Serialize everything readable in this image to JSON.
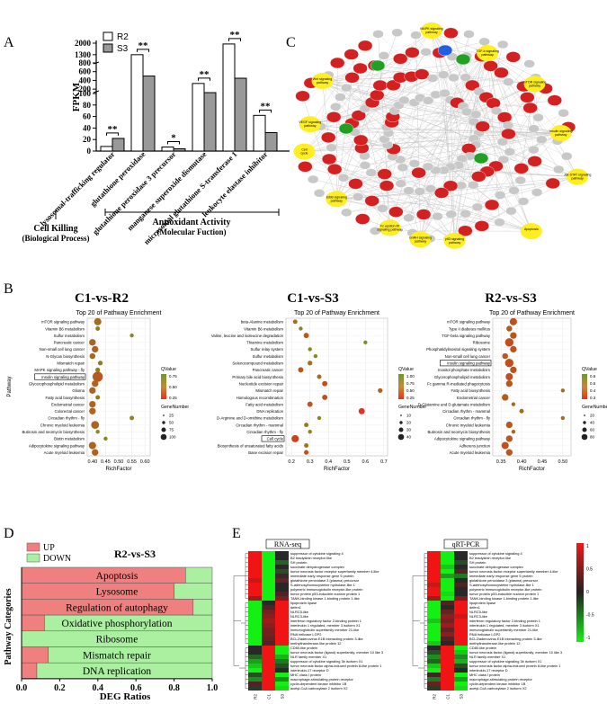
{
  "panel_labels": {
    "a": "A",
    "b": "B",
    "c": "C",
    "d": "D",
    "e": "E"
  },
  "panel_a": {
    "legend": [
      "R2",
      "S3"
    ],
    "ylabel": "FPKM",
    "group_labels": {
      "cell_killing": "Cell Killing",
      "cell_killing_sub": "(Biological Process)",
      "antioxidant": "Antioxidant Activity",
      "antioxidant_sub": "(Molecular Fuction)"
    }
  },
  "panel_c": {
    "pathway_nodes": [
      "MAPK signaling pathway",
      "TGF-b signaling pathway",
      "mTOR signaling pathway",
      "Wnt signaling pathway",
      "Insulin signaling pathway",
      "VEGF signaling pathway",
      "Jak-STAT signaling pathway",
      "Cell cycle",
      "Apoptosis",
      "ErbB signaling pathway",
      "p53 signaling pathway",
      "Fc epsilon RI signaling pathway",
      "GnRH signaling pathway"
    ]
  },
  "panel_b": {
    "titles": [
      "C1-vs-R2",
      "C1-vs-S3",
      "R2-vs-S3"
    ],
    "subtitle": "Top 20 of Pathway Enrichment",
    "xlabel": "RichFactor",
    "ylabel": "Pathway",
    "qvalue_label": "QValue",
    "gene_label": "GeneNumber"
  },
  "panel_d": {
    "title": "R2-vs-S3",
    "legend": [
      "UP",
      "DOWN"
    ],
    "xlabel": "DEG Ratios",
    "ylabel": "Pathway Categories"
  },
  "panel_e": {
    "col_labels": [
      "RNA-seq",
      "qRT-PCR"
    ],
    "sample_labels": [
      "R2",
      "C1",
      "S3"
    ],
    "scale_ticks": [
      "1",
      "0.5",
      "0",
      "-0.5",
      "-1"
    ],
    "genes": [
      "suppressor of cytokine signaling 4",
      "B2 bradykinin receptor-like",
      "SH protein",
      "succinate dehydrogenase complex",
      "tumor necrosis factor receptor superfamily member 4-like",
      "immediate early response gene 5 protein",
      "glutathione peroxidase 3 (plasma) precursor",
      "S-adenosylhomocysteine hydrolase-like 1",
      "polymeric immunoglobulin receptor-like protein",
      "tumor protein p53-inducible nuclear protein 1",
      "TANK-binding kinase 1-binding protein 1-like",
      "lipoprotein lipase",
      "defen1",
      "NLRC5-like",
      "NLRC3-like",
      "interferon regulatory factor 2-binding protein 1",
      "interleukin 1 regulated, member 3 isoform X1",
      "immunoglobulin superfamily member 21-like",
      "RNA helicase LGP2",
      "BCL2/adenovirus E1B interacting protein 3-like",
      "methyltransferase-like protein 12",
      "CD80-like protein",
      "tumor necrosis factor (ligand) superfamily, member 10 like 3",
      "NLR family member X1",
      "suppressor of cytokine signaling 3b isoform X1",
      "tumor necrosis factor alpha-induced protein 8-like protein 1",
      "interleukin-17 receptor D",
      "MHC class I protein",
      "macrophage-stimulating protein receptor",
      "cyclin-dependent kinase inhibitor 1B",
      "acetyl-CoA carboxylase 2 isoform X2"
    ]
  },
  "chart_data": [
    {
      "type": "bar",
      "panel": "A",
      "categories": [
        "lysosomal-trafficking regulator",
        "glutathione peroxidase",
        "glutathione peroxidase 3 precursor",
        "manganese superoxide dismutase",
        "microsomal glutathione S-transferase 1",
        "leukocyte elastase inhibitor"
      ],
      "series": [
        {
          "name": "R2",
          "values": [
            8,
            1300,
            7,
            330,
            1950,
            62
          ]
        },
        {
          "name": "S3",
          "values": [
            22,
            500,
            4,
            120,
            450,
            32
          ]
        }
      ],
      "significance": [
        "**",
        "**",
        "*",
        "**",
        "**",
        "**"
      ],
      "yticks": [
        0,
        20,
        40,
        60,
        80,
        100,
        200,
        400,
        600,
        800,
        1300,
        2000
      ],
      "ylabel": "FPKM"
    },
    {
      "type": "scatter",
      "panel": "B",
      "title": "C1-vs-R2",
      "subtitle": "Top 20 of Pathway Enrichment",
      "xlabel": "RichFactor",
      "ylabel": "Pathway",
      "xticks": [
        "0.40",
        "0.45",
        "0.50",
        "0.55",
        "0.60"
      ],
      "xlim": [
        0.38,
        0.62
      ],
      "pathways": [
        "mTOR signaling pathway",
        "Vitamin B6 metabolism",
        "Sulfur metabolism",
        "Pancreatic cancer",
        "Non-small cell lung cancer",
        "N-Glycan biosynthesis",
        "Mismatch repair",
        "MAPK signaling pathway - fly",
        "Insulin signaling pathway",
        "Glycerophospholipid metabolism",
        "Glioma",
        "Fatty acid biosynthesis",
        "Endometrial cancer",
        "Colorectal cancer",
        "Circadian rhythm - fly",
        "Chronic myeloid leukemia",
        "Butirosin and neomycin biosynthesis",
        "Biotin metabolism",
        "Adipocytokine signaling pathway",
        "Acute myeloid leukemia"
      ],
      "x": [
        0.42,
        0.42,
        0.55,
        0.4,
        0.41,
        0.4,
        0.43,
        0.42,
        0.42,
        0.41,
        0.4,
        0.42,
        0.4,
        0.4,
        0.55,
        0.41,
        0.42,
        0.45,
        0.4,
        0.41
      ],
      "gene_number": [
        40,
        8,
        5,
        30,
        30,
        20,
        10,
        10,
        100,
        30,
        30,
        8,
        30,
        30,
        8,
        50,
        5,
        5,
        40,
        30
      ],
      "qvalue": [
        0.55,
        0.7,
        0.8,
        0.5,
        0.5,
        0.55,
        0.7,
        0.7,
        0.4,
        0.5,
        0.5,
        0.7,
        0.5,
        0.5,
        0.75,
        0.5,
        0.8,
        0.8,
        0.5,
        0.5
      ],
      "qvalue_legend": [
        "0.75",
        "0.50",
        "0.25"
      ],
      "gene_legend": [
        "25",
        "50",
        "75",
        "100"
      ]
    },
    {
      "type": "scatter",
      "panel": "B",
      "title": "C1-vs-S3",
      "subtitle": "Top 20 of Pathway Enrichment",
      "xlabel": "RichFactor",
      "xticks": [
        "0.2",
        "0.3",
        "0.4",
        "0.5",
        "0.6",
        "0.7"
      ],
      "xlim": [
        0.17,
        0.72
      ],
      "pathways": [
        "beta-Alanine metabolism",
        "Vitamin B6 metabolism",
        "Valine, leucine and isoleucine degradation",
        "Thiamine metabolism",
        "Sulfur relay system",
        "Sulfur metabolism",
        "Selenocompound metabolism",
        "Pancreatic cancer",
        "Primary bile acid biosynthesis",
        "Nucleotide excision repair",
        "Mismatch repair",
        "Homologous recombination",
        "Fatty acid metabolism",
        "DNA replication",
        "D-Arginine and D-ornithine metabolism",
        "Circadian rhythm - mammal",
        "Circadian rhythm - fly",
        "Cell cycle",
        "Biosynthesis of unsaturated fatty acids",
        "Base excision repair"
      ],
      "x": [
        0.22,
        0.25,
        0.28,
        0.6,
        0.3,
        0.33,
        0.3,
        0.25,
        0.35,
        0.38,
        0.68,
        0.38,
        0.3,
        0.58,
        0.35,
        0.28,
        0.3,
        0.22,
        0.28,
        0.28
      ],
      "gene_number": [
        8,
        5,
        15,
        5,
        5,
        5,
        10,
        15,
        8,
        15,
        10,
        15,
        15,
        25,
        5,
        8,
        5,
        40,
        8,
        10
      ],
      "qvalue": [
        0.6,
        0.8,
        0.4,
        0.9,
        0.8,
        0.8,
        0.6,
        0.4,
        0.6,
        0.3,
        0.5,
        0.3,
        0.4,
        0.1,
        0.8,
        0.7,
        0.8,
        0.2,
        0.6,
        0.4
      ],
      "qvalue_legend": [
        "1.00",
        "0.75",
        "0.50",
        "0.25"
      ],
      "gene_legend": [
        "10",
        "20",
        "30",
        "40"
      ]
    },
    {
      "type": "scatter",
      "panel": "B",
      "title": "R2-vs-S3",
      "subtitle": "Top 20 of Pathway Enrichment",
      "xlabel": "RichFactor",
      "xticks": [
        "0.35",
        "0.40",
        "0.45",
        "0.50"
      ],
      "xlim": [
        0.33,
        0.52
      ],
      "pathways": [
        "mTOR signaling pathway",
        "Type II diabetes mellitus",
        "TGF-beta signaling pathway",
        "Ribosome",
        "Phosphatidylinositol signaling system",
        "Non-small cell lung cancer",
        "Insulin signaling pathway",
        "Inositol phosphate metabolism",
        "Glycerophospholipid metabolism",
        "Fc gamma R-mediated phagocytosis",
        "Fatty acid biosynthesis",
        "Endometrial cancer",
        "D-Glutamine and D-glutamate metabolism",
        "Circadian rhythm - mammal",
        "Circadian rhythm - fly",
        "Chronic myeloid leukemia",
        "Butirosin and neomycin biosynthesis",
        "Adipocytokine signaling pathway",
        "Adherens junction",
        "Acute myeloid leukemia"
      ],
      "x": [
        0.38,
        0.37,
        0.38,
        0.37,
        0.38,
        0.36,
        0.37,
        0.38,
        0.37,
        0.37,
        0.5,
        0.36,
        0.38,
        0.4,
        0.5,
        0.37,
        0.38,
        0.37,
        0.36,
        0.37
      ],
      "gene_number": [
        40,
        20,
        30,
        60,
        30,
        20,
        60,
        30,
        40,
        30,
        5,
        30,
        5,
        8,
        5,
        30,
        5,
        30,
        40,
        30
      ],
      "qvalue": [
        0.35,
        0.4,
        0.35,
        0.3,
        0.35,
        0.4,
        0.3,
        0.35,
        0.35,
        0.4,
        0.6,
        0.4,
        0.55,
        0.55,
        0.6,
        0.4,
        0.55,
        0.4,
        0.35,
        0.4
      ],
      "qvalue_legend": [
        "0.6",
        "0.5",
        "0.4",
        "0.3"
      ],
      "gene_legend": [
        "20",
        "40",
        "60",
        "80"
      ]
    },
    {
      "type": "bar",
      "panel": "D",
      "orientation": "horizontal-stacked",
      "title": "R2-vs-S3",
      "categories": [
        "Apoptosis",
        "Lysosome",
        "Regulation of autophagy",
        "Oxidative phosphorylation",
        "Ribosome",
        "Mismatch repair",
        "DNA replication"
      ],
      "series": [
        {
          "name": "UP",
          "values": [
            0.86,
            0.8,
            0.9,
            0.12,
            0.0,
            0.14,
            0.08
          ]
        },
        {
          "name": "DOWN",
          "values": [
            0.14,
            0.2,
            0.1,
            0.88,
            1.0,
            0.86,
            0.92
          ]
        }
      ],
      "xticks": [
        "0.0",
        "0.2",
        "0.4",
        "0.6",
        "0.8",
        "1.0"
      ],
      "xlabel": "DEG Ratios",
      "ylabel": "Pathway Categories"
    },
    {
      "type": "heatmap",
      "panel": "E",
      "columns": [
        "R2",
        "C1",
        "S3"
      ],
      "scale_range": [
        -1,
        1
      ],
      "rna_seq": [
        [
          1,
          -1,
          0
        ],
        [
          1,
          -1,
          0
        ],
        [
          1,
          -1,
          -0.3
        ],
        [
          1,
          -1,
          0
        ],
        [
          1,
          -1,
          -0.2
        ],
        [
          1,
          -1,
          0.1
        ],
        [
          0.8,
          -1,
          0.3
        ],
        [
          1,
          -1,
          0
        ],
        [
          1,
          -1,
          0
        ],
        [
          1,
          -1,
          0.2
        ],
        [
          0.6,
          -1,
          0.4
        ],
        [
          -1,
          0,
          1
        ],
        [
          -1,
          0.2,
          1
        ],
        [
          -1,
          0.4,
          1
        ],
        [
          -1,
          0.5,
          1
        ],
        [
          -1,
          0.6,
          1
        ],
        [
          -1,
          0.5,
          1
        ],
        [
          -1,
          0.4,
          1
        ],
        [
          -1,
          0.4,
          1
        ],
        [
          -1,
          0.3,
          1
        ],
        [
          -1,
          0.2,
          1
        ],
        [
          0,
          1,
          -1
        ],
        [
          0,
          1,
          -1
        ],
        [
          -0.3,
          1,
          -0.7
        ],
        [
          -0.6,
          1,
          -0.4
        ],
        [
          -0.8,
          1,
          -0.2
        ],
        [
          -1,
          1,
          0
        ],
        [
          -0.2,
          1,
          -1
        ],
        [
          -0.5,
          1,
          -0.5
        ],
        [
          0.2,
          1,
          -1
        ],
        [
          -0.1,
          1,
          -0.9
        ]
      ],
      "qrt_pcr": [
        [
          1,
          -1,
          0
        ],
        [
          1,
          -1,
          0
        ],
        [
          1,
          -1,
          -0.2
        ],
        [
          1,
          -0.8,
          0
        ],
        [
          1,
          -1,
          0.2
        ],
        [
          1,
          -0.6,
          -0.4
        ],
        [
          1,
          -1,
          0
        ],
        [
          0.8,
          -1,
          0.2
        ],
        [
          1,
          -1,
          0
        ],
        [
          1,
          -0.9,
          0
        ],
        [
          0.6,
          -1,
          0.4
        ],
        [
          -1,
          0.2,
          1
        ],
        [
          -1,
          0,
          1
        ],
        [
          -1,
          0.3,
          1
        ],
        [
          -1,
          0.5,
          0.8
        ],
        [
          -0.8,
          0.4,
          1
        ],
        [
          -1,
          0.6,
          1
        ],
        [
          -1,
          0.3,
          1
        ],
        [
          -1,
          0.5,
          1
        ],
        [
          -1,
          0.2,
          1
        ],
        [
          -0.8,
          0,
          1
        ],
        [
          0,
          1,
          -1
        ],
        [
          -0.2,
          1,
          -0.8
        ],
        [
          -0.5,
          1,
          -0.5
        ],
        [
          -0.3,
          1,
          -0.7
        ],
        [
          -0.8,
          1,
          -0.2
        ],
        [
          -1,
          1,
          0
        ],
        [
          0.1,
          1,
          -1
        ],
        [
          -0.4,
          1,
          -0.6
        ],
        [
          0.3,
          1,
          -1
        ],
        [
          -0.1,
          1,
          -0.9
        ]
      ]
    }
  ]
}
